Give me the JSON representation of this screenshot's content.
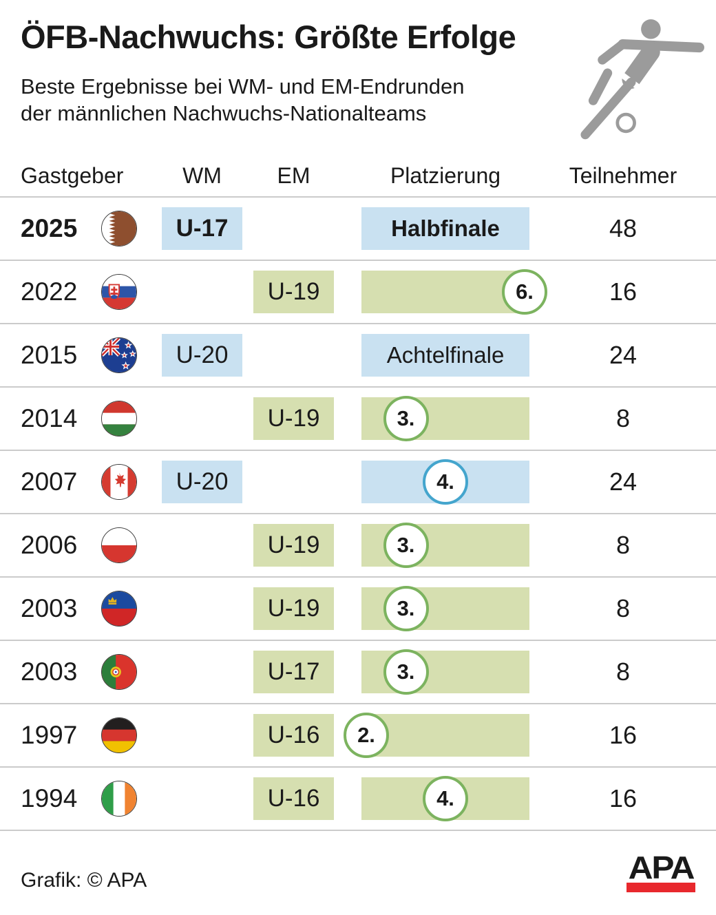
{
  "meta": {
    "title": "ÖFB-Nachwuchs: Größte Erfolge",
    "subtitle_line1": "Beste Ergebnisse bei WM- und EM-Endrunden",
    "subtitle_line2": "der männlichen Nachwuchs-Nationalteams"
  },
  "header": {
    "gastgeber": "Gastgeber",
    "wm": "WM",
    "em": "EM",
    "platzierung": "Platzierung",
    "teilnehmer": "Teilnehmer"
  },
  "rows": [
    {
      "year": "2025",
      "flag": "qatar",
      "competition": "WM",
      "age": "U-17",
      "placement": "Halbfinale",
      "placement_type": "label",
      "position": null,
      "participants": "48",
      "highlight": "blue",
      "bold": true
    },
    {
      "year": "2022",
      "flag": "slovakia",
      "competition": "EM",
      "age": "U-19",
      "placement": "6.",
      "placement_type": "circle",
      "position": 1.0,
      "participants": "16",
      "highlight": "green",
      "bold": false
    },
    {
      "year": "2015",
      "flag": "new-zealand",
      "competition": "WM",
      "age": "U-20",
      "placement": "Achtelfinale",
      "placement_type": "label",
      "position": null,
      "participants": "24",
      "highlight": "blue",
      "bold": false
    },
    {
      "year": "2014",
      "flag": "hungary",
      "competition": "EM",
      "age": "U-19",
      "placement": "3.",
      "placement_type": "circle",
      "position": 0.25,
      "participants": "8",
      "highlight": "green",
      "bold": false
    },
    {
      "year": "2007",
      "flag": "canada",
      "competition": "WM",
      "age": "U-20",
      "placement": "4.",
      "placement_type": "circle",
      "position": 0.5,
      "participants": "24",
      "highlight": "blue",
      "bold": false
    },
    {
      "year": "2006",
      "flag": "poland",
      "competition": "EM",
      "age": "U-19",
      "placement": "3.",
      "placement_type": "circle",
      "position": 0.25,
      "participants": "8",
      "highlight": "green",
      "bold": false
    },
    {
      "year": "2003",
      "flag": "liechtenstein",
      "competition": "EM",
      "age": "U-19",
      "placement": "3.",
      "placement_type": "circle",
      "position": 0.25,
      "participants": "8",
      "highlight": "green",
      "bold": false
    },
    {
      "year": "2003",
      "flag": "portugal",
      "competition": "EM",
      "age": "U-17",
      "placement": "3.",
      "placement_type": "circle",
      "position": 0.25,
      "participants": "8",
      "highlight": "green",
      "bold": false
    },
    {
      "year": "1997",
      "flag": "germany",
      "competition": "EM",
      "age": "U-16",
      "placement": "2.",
      "placement_type": "circle",
      "position": 0.0,
      "participants": "16",
      "highlight": "green",
      "bold": false
    },
    {
      "year": "1994",
      "flag": "ireland",
      "competition": "EM",
      "age": "U-16",
      "placement": "4.",
      "placement_type": "circle",
      "position": 0.5,
      "participants": "16",
      "highlight": "green",
      "bold": false
    }
  ],
  "footer": {
    "credit": "Grafik: © APA",
    "logo": "APA"
  },
  "colors": {
    "text": "#1a1a1a",
    "line": "#cbcbcb",
    "blue_box": "#c9e1f1",
    "green_box": "#d6dfb0",
    "green_stroke": "#7cb35f",
    "blue_stroke": "#44a5cd",
    "icon_gray": "#9b9b9b",
    "apa_red": "#e8282d"
  },
  "icons": {
    "player": "soccer-player-icon",
    "flags": [
      "qatar",
      "slovakia",
      "new-zealand",
      "hungary",
      "canada",
      "poland",
      "liechtenstein",
      "portugal",
      "germany",
      "ireland"
    ]
  },
  "chart_data": {
    "type": "table",
    "title": "ÖFB-Nachwuchs: Größte Erfolge",
    "subtitle": "Beste Ergebnisse bei WM- und EM-Endrunden der männlichen Nachwuchs-Nationalteams",
    "columns": [
      "Gastgeber (Jahr)",
      "Gastgeber (Flagge)",
      "WM",
      "EM",
      "Platzierung",
      "Teilnehmer"
    ],
    "rows": [
      [
        "2025",
        "qatar",
        "U-17",
        "",
        "Halbfinale",
        48
      ],
      [
        "2022",
        "slovakia",
        "",
        "U-19",
        "6.",
        16
      ],
      [
        "2015",
        "new-zealand",
        "U-20",
        "",
        "Achtelfinale",
        24
      ],
      [
        "2014",
        "hungary",
        "",
        "U-19",
        "3.",
        8
      ],
      [
        "2007",
        "canada",
        "U-20",
        "",
        "4.",
        24
      ],
      [
        "2006",
        "poland",
        "",
        "U-19",
        "3.",
        8
      ],
      [
        "2003",
        "liechtenstein",
        "",
        "U-19",
        "3.",
        8
      ],
      [
        "2003",
        "portugal",
        "",
        "U-17",
        "3.",
        8
      ],
      [
        "1997",
        "germany",
        "",
        "U-16",
        "2.",
        16
      ],
      [
        "1994",
        "ireland",
        "",
        "U-16",
        "4.",
        16
      ]
    ],
    "notes": "Blaue Markierung = WM, grüne Markierung = EM; Kreisposition im Balken entspricht der Platzierung (2. links bis 6. rechts)."
  }
}
